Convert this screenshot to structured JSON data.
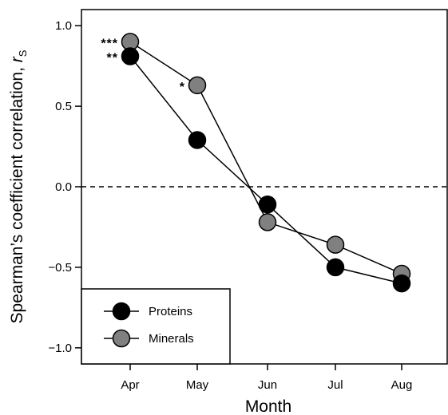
{
  "chart_data": {
    "type": "line",
    "categories": [
      "Apr",
      "May",
      "Jun",
      "Jul",
      "Aug"
    ],
    "xlabel": "Month",
    "ylabel_main": "Spearman’s coefficient correlation, ",
    "ylabel_symbol": "r",
    "ylabel_subscript": "S",
    "ylim": [
      -1.1,
      1.1
    ],
    "yticks": [
      -1.0,
      -0.5,
      0.0,
      0.5,
      1.0
    ],
    "ytick_labels": [
      "−1.0",
      "−0.5",
      "0.0",
      "0.5",
      "1.0"
    ],
    "reference_line": {
      "y": 0.0,
      "style": "dashed"
    },
    "legend_position": "bottom-left",
    "series": [
      {
        "name": "Proteins",
        "values": [
          0.81,
          0.29,
          -0.11,
          -0.5,
          -0.6
        ],
        "marker_color": "#000000",
        "significance": [
          "**",
          "",
          "",
          "",
          ""
        ]
      },
      {
        "name": "Minerals",
        "values": [
          0.9,
          0.63,
          -0.22,
          -0.36,
          -0.54
        ],
        "marker_color": "#808080",
        "significance": [
          "***",
          "*",
          "",
          "",
          ""
        ]
      }
    ]
  }
}
